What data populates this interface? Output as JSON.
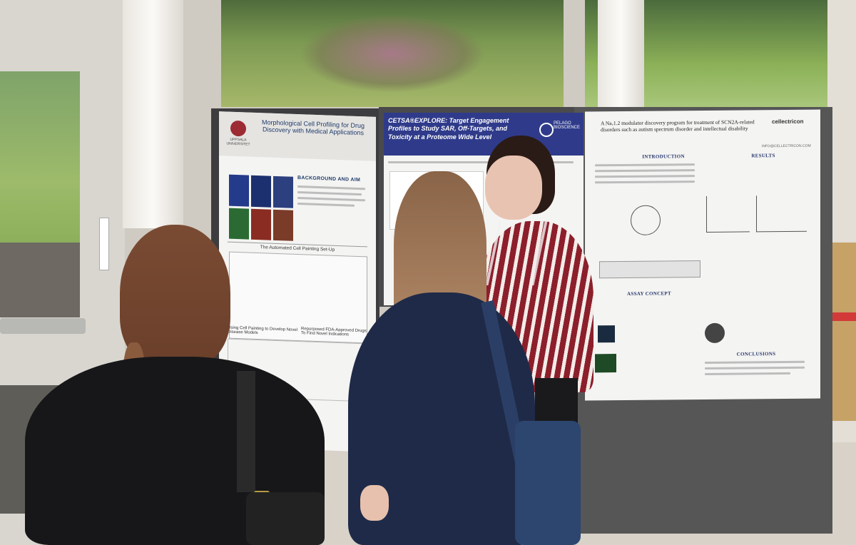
{
  "posters": {
    "left": {
      "title": "Morphological Cell Profiling for Drug Discovery with Medical Applications",
      "institution": "UPPSALA UNIVERSITET",
      "section1": "BACKGROUND AND AIM",
      "section2": "The Automated Cell Painting Set-Up",
      "section3": "Using Cell Painting to Develop Novel Disease Models",
      "section4": "Repurposed FDA-Approved Drugs To Find Novel Indications"
    },
    "middle": {
      "title": "CETSA®EXPLORE: Target Engagement Profiles to Study SAR, Off-Targets, and Toxicity at a Proteome Wide Level",
      "logo": "PELAGO BIOSCIENCE"
    },
    "right": {
      "title": "A Naᵥ1.2 modulator discovery program for treatment of SCN2A-related disorders such as autism spectrum disorder and intellectual disability",
      "logo": "cellectricon",
      "email": "INFO@CELLECTRICON.COM",
      "intro": "INTRODUCTION",
      "results": "RESULTS",
      "assay": "ASSAY CONCEPT",
      "conclusions": "CONCLUSIONS"
    }
  },
  "colors": {
    "board": "#565656",
    "poster_bg": "#f4f4f2",
    "middle_header": "#2f3b8a",
    "shirt_stripe": "#8c1f2b",
    "navy_sweater": "#1f2a48"
  }
}
